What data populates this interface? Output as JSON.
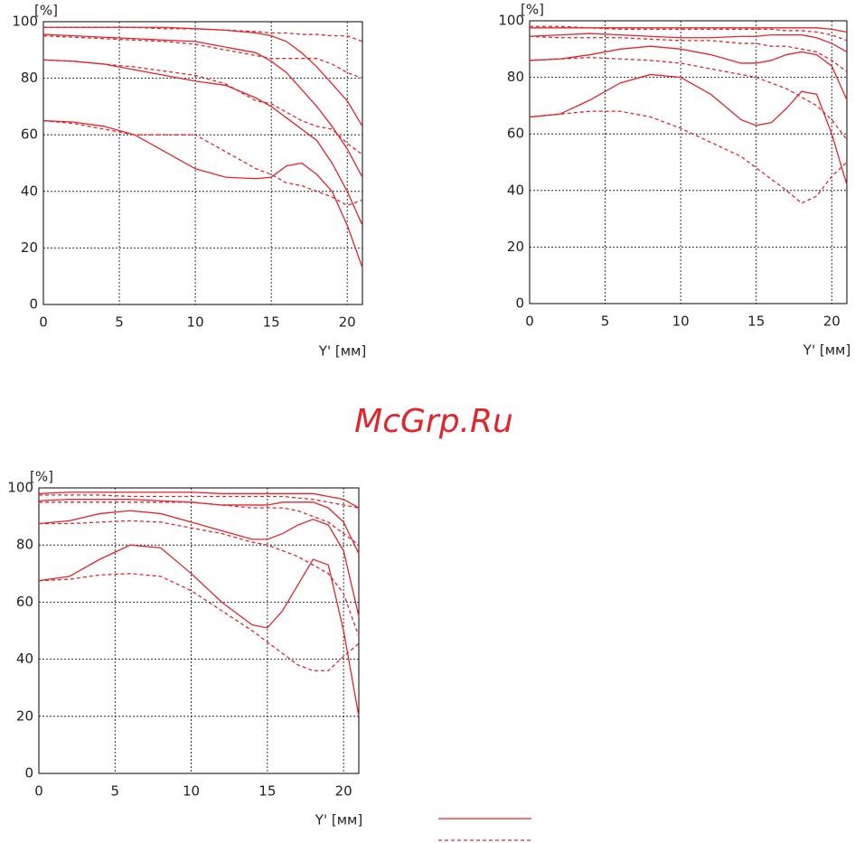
{
  "watermark": "McGrp.Ru",
  "chart_data": [
    {
      "type": "line",
      "y_axis_label": "[%]",
      "x_axis_label": "Y' [мм]",
      "xlim": [
        0,
        21
      ],
      "xticks": [
        0,
        5,
        10,
        15,
        20
      ],
      "ylim": [
        0,
        100
      ],
      "yticks": [
        0,
        20,
        40,
        60,
        80,
        100
      ],
      "grid": true,
      "x": [
        0,
        2,
        4,
        6,
        8,
        10,
        12,
        14,
        15,
        16,
        17,
        18,
        19,
        20,
        21
      ],
      "series": [
        {
          "color": "#e0262b",
          "line_style": "solid",
          "values": [
            98,
            98,
            98,
            98,
            98,
            97.5,
            97,
            96,
            95,
            93,
            89,
            84,
            78,
            72,
            63
          ]
        },
        {
          "color": "#e0262b",
          "line_style": "dashed",
          "values": [
            98,
            98,
            98,
            98,
            97.5,
            97.5,
            97,
            96.5,
            96,
            96,
            95.5,
            95.5,
            95,
            95,
            93
          ]
        },
        {
          "color": "#e0262b",
          "line_style": "solid",
          "values": [
            95.5,
            95,
            94.5,
            94,
            93.5,
            93,
            91,
            89,
            86,
            82,
            76,
            70,
            63,
            55,
            45
          ]
        },
        {
          "color": "#e0262b",
          "line_style": "dashed",
          "values": [
            95,
            94.5,
            94,
            93.5,
            93,
            92,
            90,
            88,
            87,
            87,
            87,
            87,
            85,
            82,
            80
          ]
        },
        {
          "color": "#e0262b",
          "line_style": "solid",
          "values": [
            86.5,
            86,
            85,
            83,
            81,
            79,
            77.5,
            73,
            70,
            66,
            62,
            58,
            50,
            40,
            28
          ]
        },
        {
          "color": "#e0262b",
          "line_style": "dashed",
          "values": [
            86.5,
            86,
            85,
            84,
            82.5,
            81,
            78,
            72,
            71,
            68,
            65,
            63,
            62,
            57,
            53
          ]
        },
        {
          "color": "#e0262b",
          "line_style": "solid",
          "values": [
            65,
            64.5,
            63,
            60,
            54,
            48,
            45,
            44.5,
            45,
            49,
            50,
            46,
            40,
            28,
            13
          ]
        },
        {
          "color": "#e0262b",
          "line_style": "dashed",
          "values": [
            65,
            64,
            62,
            60,
            60,
            60,
            54,
            48,
            46,
            43,
            42,
            40,
            38,
            35,
            37
          ]
        }
      ]
    },
    {
      "type": "line",
      "y_axis_label": "[%]",
      "x_axis_label": "Y' [мм]",
      "xlim": [
        0,
        21
      ],
      "xticks": [
        0,
        5,
        10,
        15,
        20
      ],
      "ylim": [
        0,
        100
      ],
      "yticks": [
        0,
        20,
        40,
        60,
        80,
        100
      ],
      "grid": true,
      "x": [
        0,
        2,
        4,
        6,
        8,
        10,
        12,
        14,
        15,
        16,
        17,
        18,
        19,
        20,
        21
      ],
      "series": [
        {
          "color": "#e0262b",
          "line_style": "solid",
          "values": [
            97.5,
            97.5,
            97.5,
            97.5,
            97.5,
            97.5,
            97.5,
            97.5,
            97.5,
            97.5,
            97.5,
            97.5,
            97.5,
            97,
            96
          ]
        },
        {
          "color": "#e0262b",
          "line_style": "dashed",
          "values": [
            98,
            98,
            97.5,
            97,
            97,
            97,
            97,
            97,
            97,
            97,
            96.5,
            96.5,
            96,
            95,
            93
          ]
        },
        {
          "color": "#e0262b",
          "line_style": "solid",
          "values": [
            94.5,
            95,
            95.5,
            95,
            94.5,
            94,
            94,
            94.5,
            94.5,
            95,
            95,
            95,
            94,
            92,
            89
          ]
        },
        {
          "color": "#e0262b",
          "line_style": "dashed",
          "values": [
            94.5,
            94,
            94,
            94,
            93.5,
            93,
            93,
            92,
            92,
            91,
            91,
            90,
            89,
            86,
            82
          ]
        },
        {
          "color": "#e0262b",
          "line_style": "solid",
          "values": [
            86,
            86.5,
            88,
            90,
            91,
            90,
            88,
            85,
            85,
            86,
            88,
            89,
            88,
            84,
            72
          ]
        },
        {
          "color": "#e0262b",
          "line_style": "dashed",
          "values": [
            86,
            86.5,
            87,
            86.5,
            86,
            85,
            83,
            81,
            80,
            78,
            76,
            73,
            70,
            65,
            58
          ]
        },
        {
          "color": "#e0262b",
          "line_style": "solid",
          "values": [
            66,
            67,
            72,
            78,
            81,
            80,
            74,
            65,
            63,
            64,
            69,
            75,
            74,
            60,
            42
          ]
        },
        {
          "color": "#e0262b",
          "line_style": "dashed",
          "values": [
            66,
            67,
            68,
            68,
            66,
            62,
            57,
            52,
            48,
            44,
            40,
            35.5,
            38,
            45,
            50
          ]
        }
      ]
    },
    {
      "type": "line",
      "y_axis_label": "[%]",
      "x_axis_label": "Y' [мм]",
      "xlim": [
        0,
        21
      ],
      "xticks": [
        0,
        5,
        10,
        15,
        20
      ],
      "ylim": [
        0,
        100
      ],
      "yticks": [
        0,
        20,
        40,
        60,
        80,
        100
      ],
      "grid": true,
      "x": [
        0,
        2,
        4,
        6,
        8,
        10,
        12,
        14,
        15,
        16,
        17,
        18,
        19,
        20,
        21
      ],
      "series": [
        {
          "color": "#e0262b",
          "line_style": "solid",
          "values": [
            98,
            98.5,
            98.5,
            98.5,
            98.5,
            98.5,
            98,
            98,
            98,
            98,
            98,
            98,
            97,
            96,
            93
          ]
        },
        {
          "color": "#e0262b",
          "line_style": "dashed",
          "values": [
            97.5,
            97.5,
            97.5,
            97,
            97,
            97,
            97,
            97,
            97,
            97,
            96.5,
            96,
            95,
            94,
            93
          ]
        },
        {
          "color": "#e0262b",
          "line_style": "solid",
          "values": [
            95.5,
            96,
            96,
            96,
            95.5,
            95,
            94,
            94,
            94,
            95,
            95,
            95,
            93,
            88,
            77
          ]
        },
        {
          "color": "#e0262b",
          "line_style": "dashed",
          "values": [
            95,
            95,
            95,
            95,
            95,
            95,
            94,
            93,
            93,
            93,
            92,
            90,
            88,
            84,
            80
          ]
        },
        {
          "color": "#e0262b",
          "line_style": "solid",
          "values": [
            87.5,
            88.5,
            91,
            92,
            91,
            88,
            85,
            82,
            82,
            84,
            87,
            89,
            87,
            78,
            55
          ]
        },
        {
          "color": "#e0262b",
          "line_style": "dashed",
          "values": [
            87.5,
            87.5,
            88,
            88.5,
            88,
            86,
            84,
            81,
            80,
            78,
            76,
            73,
            70,
            63,
            48
          ]
        },
        {
          "color": "#e0262b",
          "line_style": "solid",
          "values": [
            67.5,
            69,
            75,
            80,
            79,
            70,
            60,
            52,
            51,
            57,
            66,
            75,
            73,
            50,
            20
          ]
        },
        {
          "color": "#e0262b",
          "line_style": "dashed",
          "values": [
            67.5,
            68,
            69.5,
            70,
            69,
            64,
            57,
            50,
            46,
            42,
            38,
            36,
            36,
            41,
            45.5
          ]
        }
      ]
    }
  ]
}
